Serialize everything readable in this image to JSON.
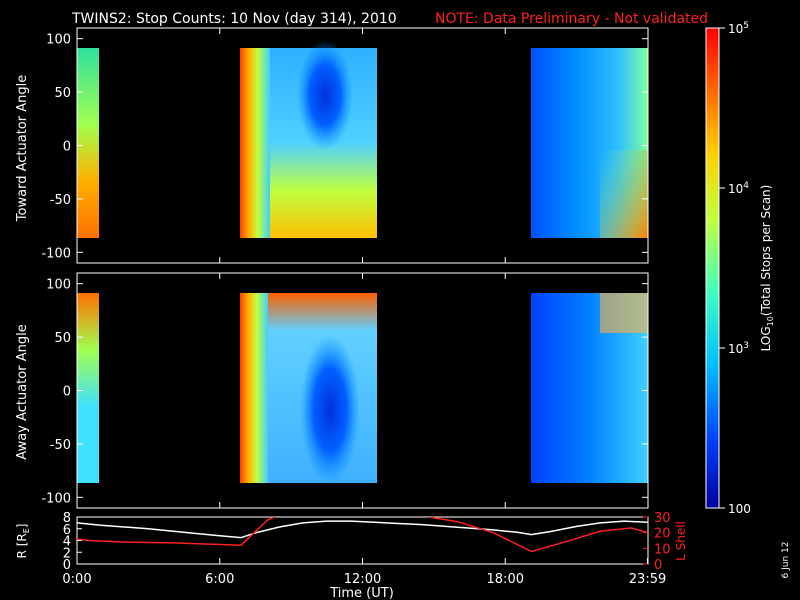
{
  "title": "TWINS2: Stop Counts: 10 Nov (day 314), 2010",
  "note": "NOTE: Data Preliminary - Not validated",
  "date_stamp": "6 Jun 12",
  "chart_data": [
    {
      "type": "heatmap",
      "name": "toward",
      "ylabel": "Toward Actuator Angle",
      "ylim": [
        -110,
        110
      ],
      "yticks": [
        "100",
        "50",
        "0",
        "-50",
        "-100"
      ],
      "ytick_values": [
        100,
        50,
        0,
        -50,
        -100
      ],
      "x_range_hours": [
        0,
        24
      ],
      "data_intervals_hours": [
        [
          0.0,
          0.85
        ],
        [
          6.9,
          12.65
        ],
        [
          18.8,
          24.0
        ]
      ],
      "note": "color encodes log10 stop counts"
    },
    {
      "type": "heatmap",
      "name": "away",
      "ylabel": "Away Actuator Angle",
      "ylim": [
        -110,
        110
      ],
      "yticks": [
        "100",
        "50",
        "0",
        "-50",
        "-100"
      ],
      "ytick_values": [
        100,
        50,
        0,
        -50,
        -100
      ],
      "x_range_hours": [
        0,
        24
      ],
      "data_intervals_hours": [
        [
          0.0,
          0.85
        ],
        [
          6.9,
          12.65
        ],
        [
          18.8,
          24.0
        ]
      ]
    },
    {
      "type": "line",
      "name": "orbit",
      "xlabel": "Time (UT)",
      "xticks": [
        "0:00",
        "6:00",
        "12:00",
        "18:00",
        "23:59"
      ],
      "xtick_values": [
        0,
        6,
        12,
        18,
        23.98
      ],
      "ylabel_left": "R [R",
      "ylabel_left_sub": "E",
      "ylabel_left_end": "]",
      "yticks_left": [
        "8",
        "6",
        "4",
        "2",
        "0"
      ],
      "ylim_left": [
        0,
        8
      ],
      "ylabel_right": "L Shell",
      "yticks_right": [
        "30",
        "20",
        "10",
        "0"
      ],
      "ylim_right": [
        0,
        30
      ],
      "series": [
        {
          "name": "R",
          "color": "#ffffff",
          "x": [
            0,
            1,
            2,
            3,
            4,
            5,
            6,
            6.9,
            7.5,
            8.5,
            9.5,
            10.5,
            11.5,
            12.5,
            13.5,
            14.5,
            15.5,
            16.5,
            17.5,
            18.5,
            19.1,
            20,
            21,
            22,
            23,
            23.98
          ],
          "y": [
            7.0,
            6.6,
            6.3,
            6.0,
            5.6,
            5.2,
            4.8,
            4.5,
            5.3,
            6.3,
            7.0,
            7.3,
            7.3,
            7.1,
            6.9,
            6.7,
            6.4,
            6.1,
            5.8,
            5.4,
            5.0,
            5.6,
            6.4,
            7.0,
            7.3,
            7.1
          ]
        },
        {
          "name": "L Shell",
          "color": "#ff2020",
          "x": [
            0,
            0.5,
            2,
            4,
            6.9,
            8.0,
            8.3
          ],
          "y": [
            16,
            15,
            14,
            13.5,
            12,
            28,
            30
          ],
          "x2": [
            14.8,
            16,
            17.5,
            19.1,
            20.5,
            22,
            23.3,
            23.98
          ],
          "y2": [
            30,
            27,
            20,
            8,
            14,
            21,
            23,
            20
          ]
        }
      ]
    }
  ],
  "colorbar": {
    "label": "LOG",
    "label_sub": "10",
    "label_rest": "(Total Stops per Scan)",
    "ticks": [
      {
        "base": "10",
        "exp": "5",
        "value": 100000
      },
      {
        "base": "10",
        "exp": "4",
        "value": 10000
      },
      {
        "base": "10",
        "exp": "3",
        "value": 1000
      },
      {
        "base": "100",
        "exp": "",
        "value": 100
      }
    ],
    "colors": [
      "#0000a0",
      "#0040ff",
      "#00c0ff",
      "#40ffc0",
      "#c0ff40",
      "#ffd000",
      "#ff6000",
      "#ff0000"
    ]
  }
}
